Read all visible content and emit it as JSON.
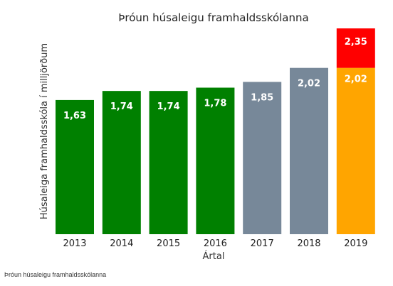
{
  "chart_data": {
    "type": "bar",
    "title": "Þróun húsaleigu framhaldsskólanna",
    "xlabel": "Ártal",
    "ylabel": "Húsaleiga framhaldsskóla í milljörðum",
    "ylim": [
      0,
      2.5
    ],
    "grid": false,
    "categories": [
      "2013",
      "2014",
      "2015",
      "2016",
      "2017",
      "2018",
      "2019"
    ],
    "series": [
      {
        "values": [
          1.63,
          1.74,
          1.74,
          1.78,
          1.85,
          2.02,
          2.02
        ],
        "labels": [
          "1,63",
          "1,74",
          "1,74",
          "1,78",
          "1,85",
          "2,02",
          "2,02"
        ],
        "colors": [
          "#008000",
          "#008000",
          "#008000",
          "#008000",
          "#778899",
          "#778899",
          "#FFA500"
        ]
      },
      {
        "values": [
          null,
          null,
          null,
          null,
          null,
          null,
          2.35
        ],
        "labels": [
          "",
          "",
          "",
          "",
          "",
          "",
          "2,35"
        ],
        "colors": [
          "",
          "",
          "",
          "",
          "",
          "",
          "#FF0000"
        ]
      }
    ]
  },
  "caption": "Þróun húsaleigu framhaldsskólanna"
}
